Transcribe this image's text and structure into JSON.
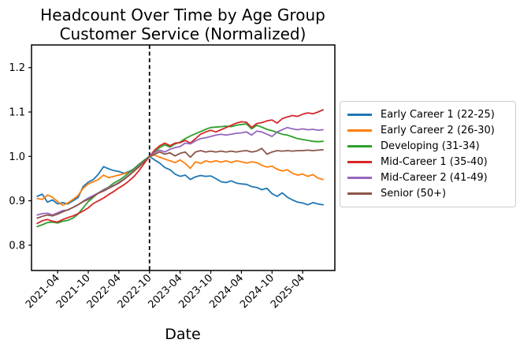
{
  "chart_data": {
    "type": "line",
    "title": "Headcount Over Time by Age Group",
    "subtitle": "Customer Service (Normalized)",
    "xlabel": "Date",
    "grid": false,
    "legend_position": "right-outside",
    "ylim": [
      0.743,
      1.251
    ],
    "yticks": [
      "0.8",
      "0.9",
      "1.0",
      "1.1",
      "1.2"
    ],
    "ytick_values": [
      0.8,
      0.9,
      1.0,
      1.1,
      1.2
    ],
    "xticks": [
      "2021-04",
      "2021-10",
      "2022-04",
      "2022-10",
      "2023-04",
      "2023-10",
      "2024-04",
      "2024-10",
      "2025-04"
    ],
    "vline": {
      "x": "2022-10",
      "style": "dashed",
      "color": "#000000"
    },
    "x": [
      "2020-12",
      "2021-01",
      "2021-02",
      "2021-03",
      "2021-04",
      "2021-05",
      "2021-06",
      "2021-07",
      "2021-08",
      "2021-09",
      "2021-10",
      "2021-11",
      "2021-12",
      "2022-01",
      "2022-02",
      "2022-03",
      "2022-04",
      "2022-05",
      "2022-06",
      "2022-07",
      "2022-08",
      "2022-09",
      "2022-10",
      "2022-11",
      "2022-12",
      "2023-01",
      "2023-02",
      "2023-03",
      "2023-04",
      "2023-05",
      "2023-06",
      "2023-07",
      "2023-08",
      "2023-09",
      "2023-10",
      "2023-11",
      "2023-12",
      "2024-01",
      "2024-02",
      "2024-03",
      "2024-04",
      "2024-05",
      "2024-06",
      "2024-07",
      "2024-08",
      "2024-09",
      "2024-10",
      "2024-11",
      "2024-12",
      "2025-01",
      "2025-02",
      "2025-03",
      "2025-04",
      "2025-05",
      "2025-06",
      "2025-07",
      "2025-08"
    ],
    "series": [
      {
        "name": "Early Career 1 (22-25)",
        "color": "#1f77b4",
        "values": [
          0.91,
          0.915,
          0.897,
          0.902,
          0.893,
          0.896,
          0.893,
          0.9,
          0.907,
          0.932,
          0.942,
          0.948,
          0.96,
          0.977,
          0.972,
          0.968,
          0.966,
          0.962,
          0.966,
          0.972,
          0.98,
          0.99,
          1.0,
          0.992,
          0.985,
          0.975,
          0.97,
          0.96,
          0.955,
          0.958,
          0.948,
          0.954,
          0.957,
          0.955,
          0.956,
          0.95,
          0.943,
          0.941,
          0.945,
          0.94,
          0.938,
          0.937,
          0.932,
          0.93,
          0.925,
          0.928,
          0.916,
          0.91,
          0.918,
          0.908,
          0.902,
          0.897,
          0.895,
          0.891,
          0.896,
          0.893,
          0.891
        ]
      },
      {
        "name": "Early Career 2 (26-30)",
        "color": "#ff7f0e",
        "values": [
          0.905,
          0.903,
          0.913,
          0.908,
          0.898,
          0.89,
          0.895,
          0.903,
          0.912,
          0.928,
          0.938,
          0.943,
          0.948,
          0.958,
          0.952,
          0.955,
          0.958,
          0.961,
          0.964,
          0.97,
          0.978,
          0.99,
          1.0,
          1.003,
          0.998,
          0.994,
          0.99,
          0.986,
          0.992,
          0.984,
          0.973,
          0.988,
          0.984,
          0.99,
          0.987,
          0.99,
          0.987,
          0.99,
          0.986,
          0.99,
          0.988,
          0.985,
          0.988,
          0.986,
          0.98,
          0.976,
          0.978,
          0.971,
          0.967,
          0.97,
          0.962,
          0.958,
          0.96,
          0.955,
          0.959,
          0.951,
          0.948
        ]
      },
      {
        "name": "Developing (31-34)",
        "color": "#2ca02c",
        "values": [
          0.842,
          0.846,
          0.851,
          0.852,
          0.85,
          0.854,
          0.856,
          0.861,
          0.87,
          0.884,
          0.898,
          0.908,
          0.918,
          0.925,
          0.931,
          0.94,
          0.946,
          0.954,
          0.963,
          0.973,
          0.983,
          0.992,
          1.0,
          1.01,
          1.02,
          1.026,
          1.021,
          1.028,
          1.032,
          1.04,
          1.046,
          1.051,
          1.056,
          1.061,
          1.065,
          1.066,
          1.067,
          1.068,
          1.067,
          1.07,
          1.072,
          1.073,
          1.062,
          1.07,
          1.066,
          1.061,
          1.058,
          1.054,
          1.05,
          1.048,
          1.044,
          1.04,
          1.038,
          1.036,
          1.034,
          1.033,
          1.034
        ]
      },
      {
        "name": "Mid-Career 1 (35-40)",
        "color": "#d62728",
        "values": [
          0.849,
          0.855,
          0.858,
          0.854,
          0.852,
          0.858,
          0.862,
          0.866,
          0.871,
          0.877,
          0.884,
          0.894,
          0.9,
          0.906,
          0.914,
          0.921,
          0.929,
          0.936,
          0.945,
          0.955,
          0.969,
          0.985,
          1.0,
          1.014,
          1.024,
          1.03,
          1.024,
          1.03,
          1.031,
          1.036,
          1.03,
          1.04,
          1.05,
          1.055,
          1.059,
          1.055,
          1.06,
          1.065,
          1.07,
          1.075,
          1.078,
          1.077,
          1.065,
          1.074,
          1.076,
          1.08,
          1.082,
          1.075,
          1.085,
          1.089,
          1.092,
          1.09,
          1.095,
          1.098,
          1.096,
          1.1,
          1.105
        ]
      },
      {
        "name": "Mid-Career 2 (41-49)",
        "color": "#9467bd",
        "values": [
          0.868,
          0.871,
          0.872,
          0.868,
          0.873,
          0.878,
          0.879,
          0.885,
          0.891,
          0.899,
          0.906,
          0.912,
          0.918,
          0.924,
          0.93,
          0.935,
          0.941,
          0.949,
          0.958,
          0.968,
          0.979,
          0.99,
          1.0,
          1.009,
          1.014,
          1.01,
          1.016,
          1.02,
          1.022,
          1.03,
          1.028,
          1.035,
          1.04,
          1.042,
          1.045,
          1.048,
          1.05,
          1.048,
          1.05,
          1.052,
          1.053,
          1.055,
          1.048,
          1.057,
          1.055,
          1.05,
          1.045,
          1.055,
          1.06,
          1.065,
          1.062,
          1.06,
          1.062,
          1.06,
          1.061,
          1.059,
          1.06
        ]
      },
      {
        "name": "Senior (50+)",
        "color": "#8c564b",
        "values": [
          0.861,
          0.865,
          0.868,
          0.866,
          0.87,
          0.875,
          0.88,
          0.885,
          0.891,
          0.898,
          0.903,
          0.91,
          0.917,
          0.922,
          0.928,
          0.934,
          0.94,
          0.948,
          0.957,
          0.967,
          0.977,
          0.989,
          1.0,
          1.005,
          1.01,
          1.005,
          1.008,
          1.001,
          1.007,
          1.01,
          0.998,
          1.01,
          1.013,
          1.01,
          1.012,
          1.01,
          1.012,
          1.01,
          1.012,
          1.01,
          1.012,
          1.013,
          1.01,
          1.012,
          1.018,
          1.005,
          1.01,
          1.013,
          1.012,
          1.013,
          1.012,
          1.013,
          1.013,
          1.014,
          1.013,
          1.014,
          1.015
        ]
      }
    ]
  }
}
